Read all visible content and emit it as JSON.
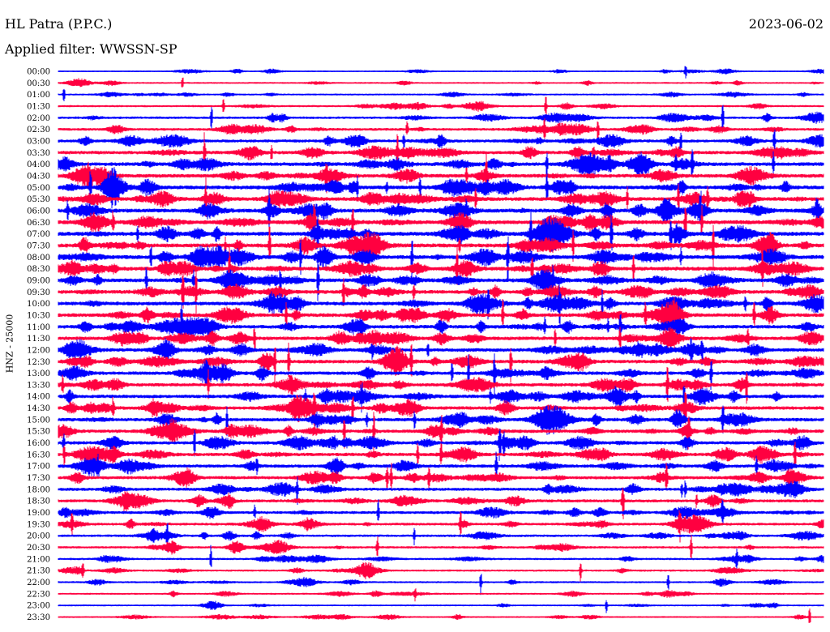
{
  "header": {
    "station": "HL Patra (P.P.C.)",
    "filter": "Applied filter: WWSSN-SP",
    "date": "2023-06-02"
  },
  "chart_data": {
    "type": "line",
    "ylabel": "HNZ - 25000",
    "rows": [
      "00:00",
      "00:30",
      "01:00",
      "01:30",
      "02:00",
      "02:30",
      "03:00",
      "03:30",
      "04:00",
      "04:30",
      "05:00",
      "05:30",
      "06:00",
      "06:30",
      "07:00",
      "07:30",
      "08:00",
      "08:30",
      "09:00",
      "09:30",
      "10:00",
      "10:30",
      "11:00",
      "11:30",
      "12:00",
      "12:30",
      "13:00",
      "13:30",
      "14:00",
      "14:30",
      "15:00",
      "15:30",
      "16:00",
      "16:30",
      "17:00",
      "17:30",
      "18:00",
      "18:30",
      "19:00",
      "19:30",
      "20:00",
      "20:30",
      "21:00",
      "21:30",
      "22:00",
      "22:30",
      "23:00",
      "23:30"
    ],
    "row_activity": [
      0.25,
      0.3,
      0.35,
      0.45,
      0.6,
      0.7,
      0.85,
      1.0,
      1.1,
      1.1,
      1.15,
      1.15,
      1.2,
      1.2,
      1.2,
      1.2,
      1.2,
      1.15,
      1.15,
      1.1,
      1.1,
      1.1,
      1.05,
      1.05,
      1.05,
      1.05,
      1.0,
      1.0,
      1.0,
      1.0,
      1.0,
      1.0,
      0.95,
      0.95,
      0.95,
      0.9,
      0.85,
      0.85,
      0.8,
      0.7,
      0.6,
      0.55,
      0.5,
      0.45,
      0.4,
      0.35,
      0.3,
      0.3
    ],
    "colors": [
      "#0000ff",
      "#ff0040"
    ],
    "grid": false
  }
}
